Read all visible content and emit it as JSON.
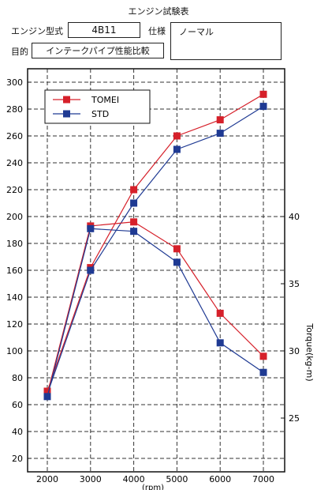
{
  "header": {
    "title": "エンジン試験表",
    "engine_label": "エンジン型式",
    "engine_value": "4B11",
    "spec_label": "仕様",
    "spec_value": "ノーマル",
    "purpose_label": "目的",
    "purpose_value": "インテークパイプ性能比較"
  },
  "chart_data": {
    "type": "line",
    "xlabel": "(rpm)",
    "ylabel_left": "",
    "ylabel_right": "Torque(kg-m)",
    "x": [
      2000,
      3000,
      4000,
      5000,
      6000,
      7000
    ],
    "x_ticks": [
      "2000",
      "3000",
      "4000",
      "5000",
      "6000",
      "7000"
    ],
    "y_left_ticks": [
      20,
      40,
      60,
      80,
      100,
      120,
      140,
      160,
      180,
      200,
      220,
      240,
      260,
      280,
      300
    ],
    "y_left_ticks_label": [
      "20",
      "40",
      "60",
      "80",
      "100",
      "120",
      "140",
      "160",
      "180",
      "200",
      "220",
      "240",
      "260",
      "280",
      "300"
    ],
    "ylim_left": [
      10,
      310
    ],
    "y_right_ticks": [
      25,
      30,
      35,
      40
    ],
    "y_right_ticks_label": [
      "25",
      "30",
      "35",
      "40"
    ],
    "ylim_right": [
      21,
      51
    ],
    "grid": true,
    "legend_position": "top-left",
    "legend": [
      "TOMEI",
      "STD"
    ],
    "series": [
      {
        "name": "TOMEI",
        "axis": "left",
        "color": "#d6202a",
        "values": [
          70,
          162,
          220,
          260,
          272,
          291
        ]
      },
      {
        "name": "STD",
        "axis": "left",
        "color": "#1f3a93",
        "values": [
          68,
          160,
          210,
          250,
          262,
          282
        ]
      },
      {
        "name": "TOMEI",
        "axis": "right",
        "color": "#d6202a",
        "values": [
          26.8,
          39.3,
          39.6,
          37.6,
          32.8,
          29.6
        ]
      },
      {
        "name": "STD",
        "axis": "right",
        "color": "#1f3a93",
        "values": [
          26.6,
          39.1,
          38.9,
          36.6,
          30.6,
          28.4
        ]
      }
    ]
  }
}
